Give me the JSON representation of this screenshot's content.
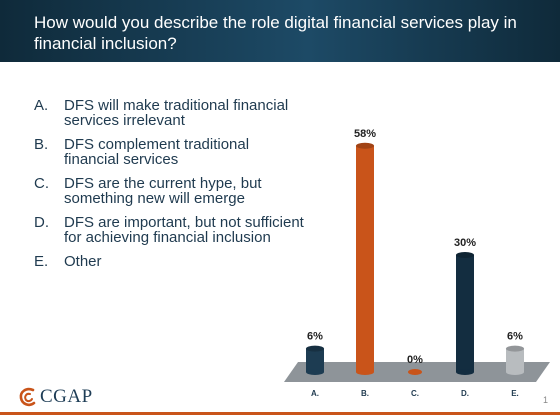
{
  "header": {
    "title": "How would you describe the role digital financial services play in financial inclusion?"
  },
  "options": [
    {
      "letter": "A.",
      "text": "DFS will make traditional financial services irrelevant"
    },
    {
      "letter": "B.",
      "text": "DFS complement traditional financial services"
    },
    {
      "letter": "C.",
      "text": "DFS are the current hype, but something new will emerge"
    },
    {
      "letter": "D.",
      "text": "DFS are important, but not sufficient for achieving financial inclusion"
    },
    {
      "letter": "E.",
      "text": "Other"
    }
  ],
  "chart_data": {
    "type": "bar",
    "categories": [
      "A.",
      "B.",
      "C.",
      "D.",
      "E."
    ],
    "values": [
      6,
      58,
      0,
      30,
      6
    ],
    "data_labels": [
      "6%",
      "58%",
      "0%",
      "30%",
      "6%"
    ],
    "colors": [
      "#1d3c52",
      "#c9541a",
      "#c9541a",
      "#132d40",
      "#b8bcbf"
    ],
    "ylim": [
      0,
      60
    ],
    "style": "3d-cylinders",
    "floor_color": "#8e9499"
  },
  "logo": {
    "text": "CGAP"
  },
  "page_number": "1"
}
